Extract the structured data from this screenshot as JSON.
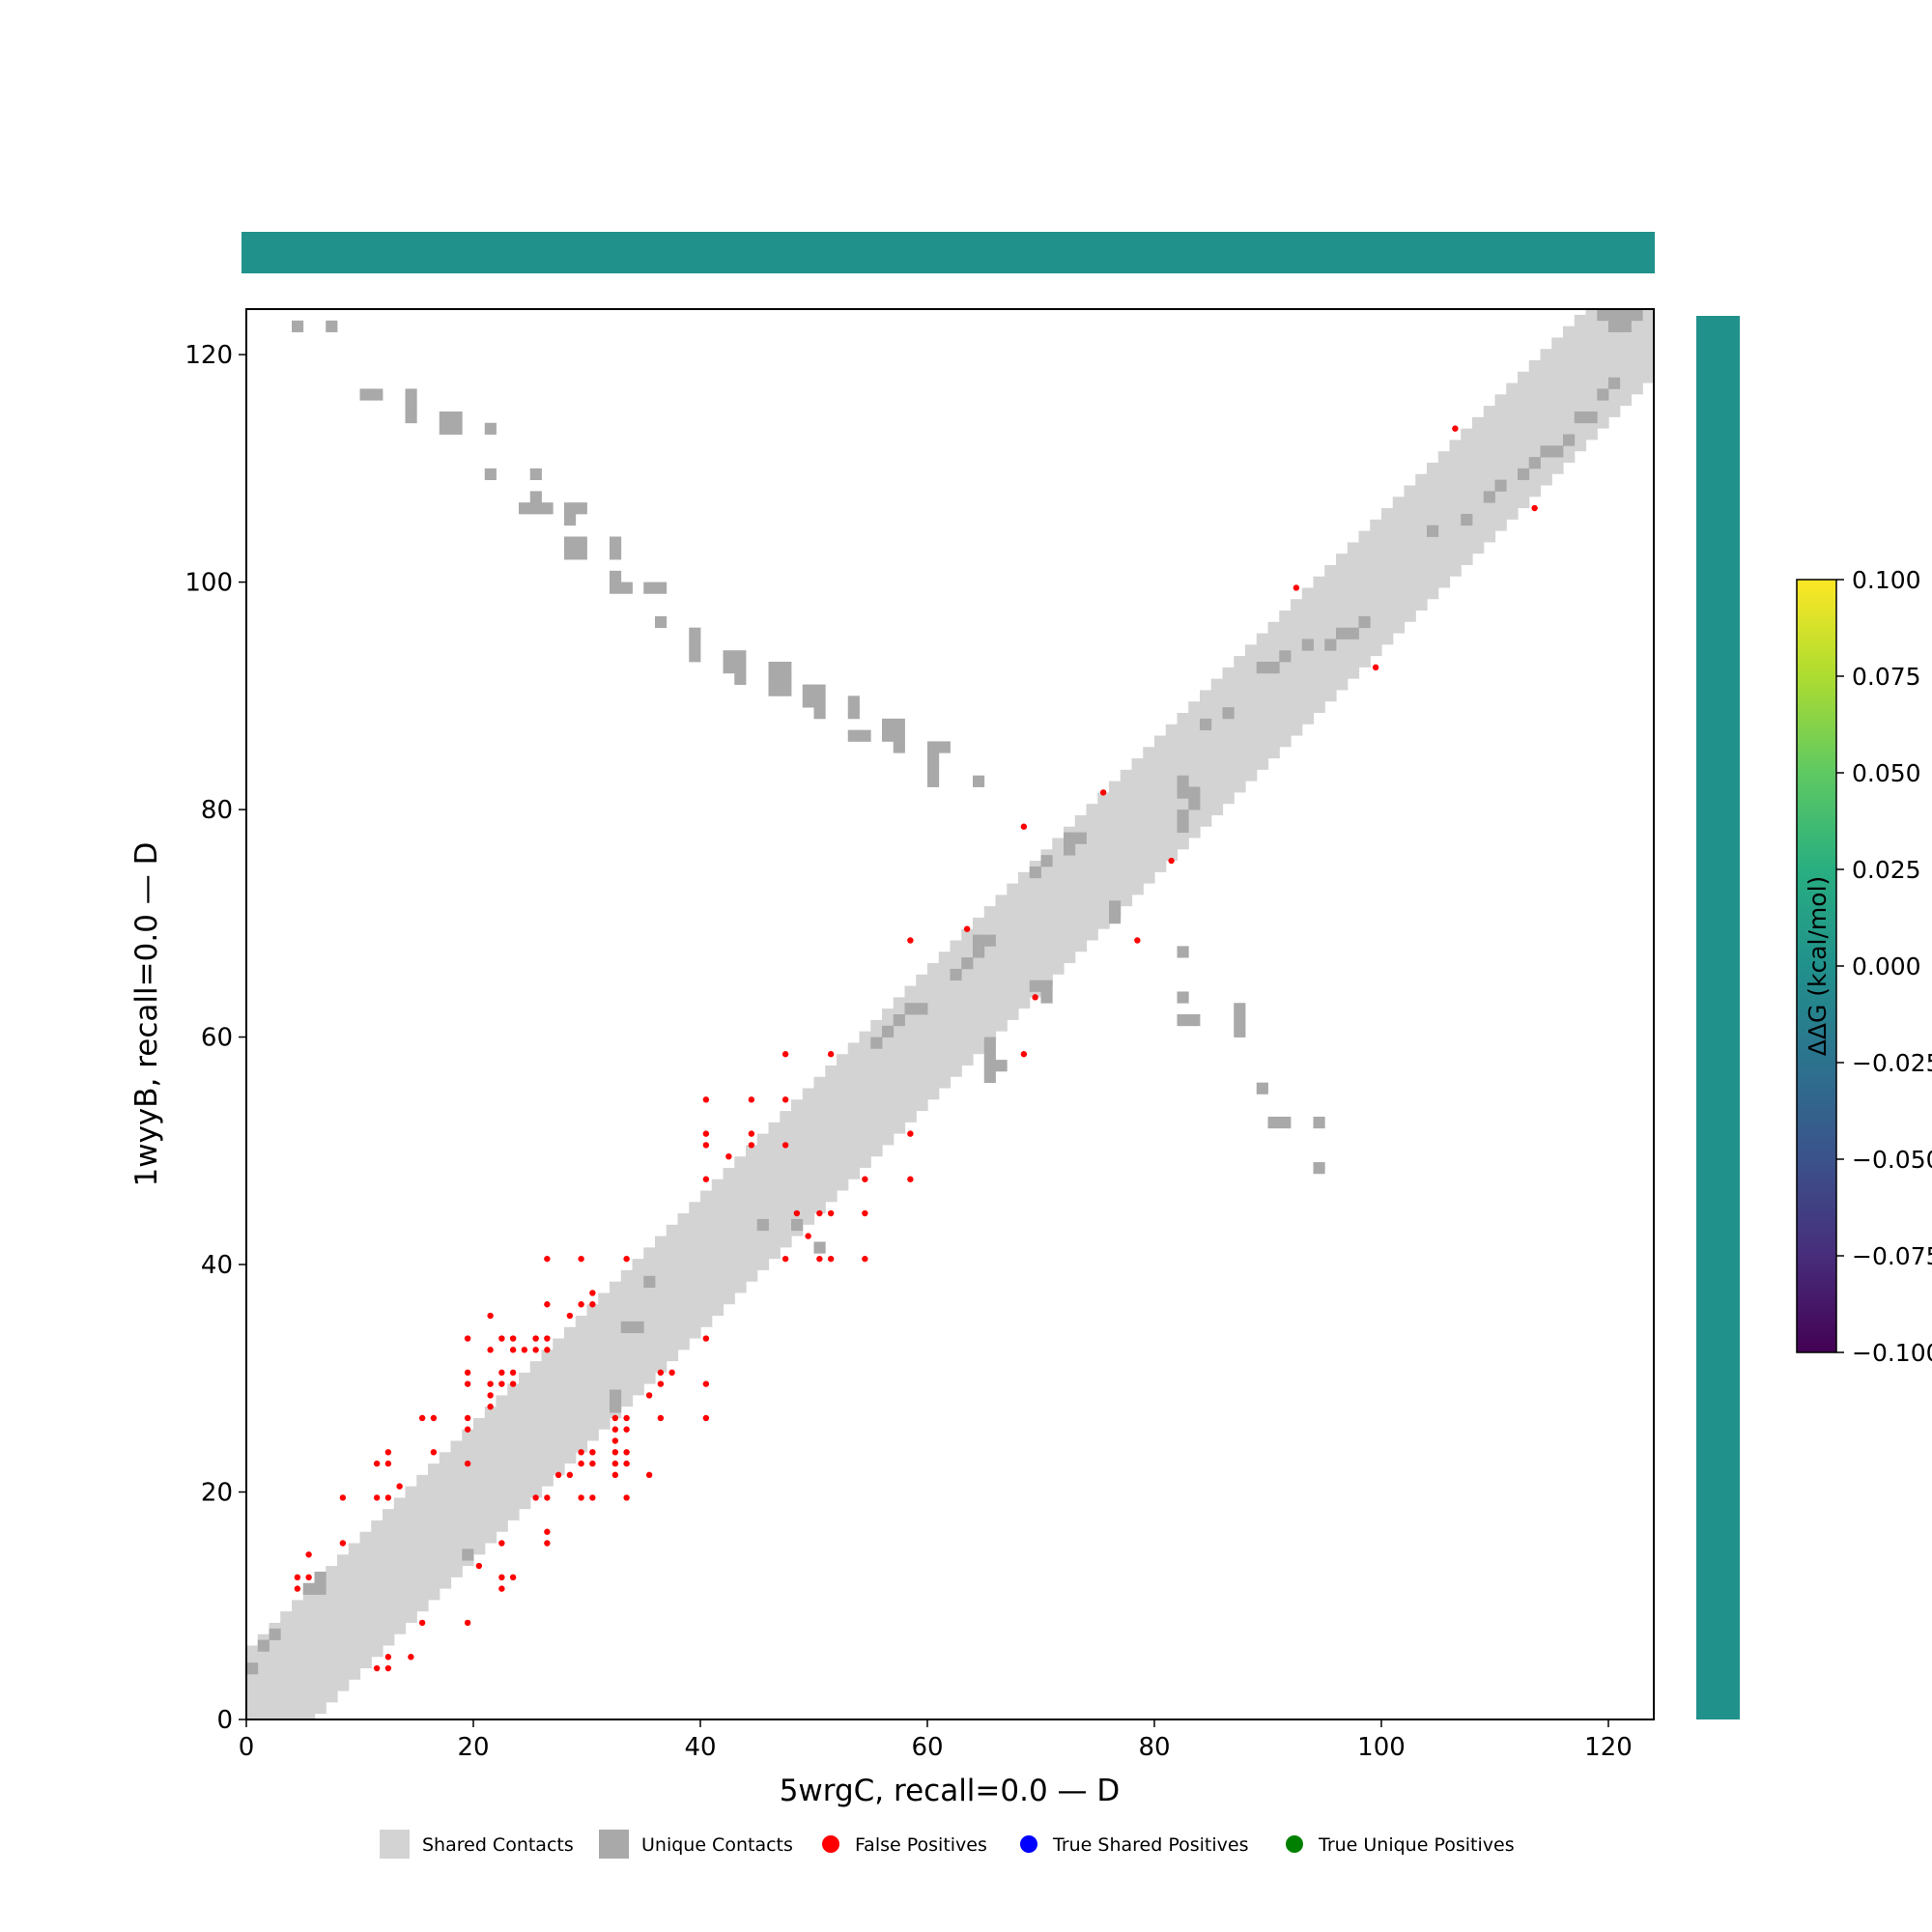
{
  "chart_data": {
    "type": "heatmap",
    "title": "",
    "xlabel": "5wrgC, recall=0.0 — D",
    "ylabel": "1wyyB, recall=0.0 — D",
    "xlim": [
      0,
      124
    ],
    "ylim": [
      0,
      124
    ],
    "xticks": [
      0,
      20,
      40,
      60,
      80,
      100,
      120
    ],
    "yticks": [
      0,
      20,
      40,
      60,
      80,
      100,
      120
    ],
    "grid": false,
    "colors": {
      "shared": "#d3d3d3",
      "unique": "#a9a9a9",
      "false_positive": "#ff0000",
      "true_shared_positive": "#0000ff",
      "true_unique_positive": "#008000",
      "track": "#21918c"
    },
    "shared_band": {
      "description_free": true,
      "x_start": 0,
      "x_end": 124,
      "half_width": 5.5
    },
    "unique_contacts": [
      [
        4,
        122
      ],
      [
        7,
        122
      ],
      [
        10,
        116
      ],
      [
        11,
        116
      ],
      [
        14,
        116
      ],
      [
        14,
        115
      ],
      [
        14,
        114
      ],
      [
        17,
        114
      ],
      [
        18,
        114
      ],
      [
        17,
        113
      ],
      [
        18,
        113
      ],
      [
        21,
        113
      ],
      [
        21,
        109
      ],
      [
        25,
        109
      ],
      [
        25,
        107
      ],
      [
        24,
        106
      ],
      [
        25,
        106
      ],
      [
        26,
        106
      ],
      [
        28,
        106
      ],
      [
        29,
        106
      ],
      [
        28,
        105
      ],
      [
        28,
        103
      ],
      [
        29,
        103
      ],
      [
        28,
        102
      ],
      [
        29,
        102
      ],
      [
        32,
        103
      ],
      [
        32,
        102
      ],
      [
        32,
        100
      ],
      [
        32,
        99
      ],
      [
        33,
        99
      ],
      [
        35,
        99
      ],
      [
        36,
        99
      ],
      [
        36,
        96
      ],
      [
        39,
        95
      ],
      [
        39,
        94
      ],
      [
        39,
        93
      ],
      [
        42,
        93
      ],
      [
        43,
        93
      ],
      [
        42,
        92
      ],
      [
        43,
        92
      ],
      [
        43,
        91
      ],
      [
        46,
        92
      ],
      [
        47,
        92
      ],
      [
        46,
        91
      ],
      [
        47,
        91
      ],
      [
        46,
        90
      ],
      [
        47,
        90
      ],
      [
        49,
        90
      ],
      [
        50,
        90
      ],
      [
        49,
        89
      ],
      [
        50,
        89
      ],
      [
        50,
        88
      ],
      [
        53,
        89
      ],
      [
        53,
        88
      ],
      [
        53,
        86
      ],
      [
        54,
        86
      ],
      [
        56,
        87
      ],
      [
        57,
        87
      ],
      [
        56,
        86
      ],
      [
        57,
        86
      ],
      [
        57,
        85
      ],
      [
        60,
        85
      ],
      [
        61,
        85
      ],
      [
        60,
        84
      ],
      [
        60,
        83
      ],
      [
        60,
        82
      ],
      [
        64,
        82
      ],
      [
        76,
        71
      ],
      [
        76,
        70
      ],
      [
        82,
        67
      ],
      [
        82,
        63
      ],
      [
        82,
        61
      ],
      [
        83,
        61
      ],
      [
        87,
        62
      ],
      [
        87,
        61
      ],
      [
        87,
        60
      ],
      [
        89,
        55
      ],
      [
        90,
        52
      ],
      [
        91,
        52
      ],
      [
        94,
        52
      ],
      [
        94,
        48
      ],
      [
        69,
        64
      ],
      [
        70,
        64
      ],
      [
        70,
        63
      ],
      [
        65,
        59
      ],
      [
        65,
        58
      ],
      [
        65,
        57
      ],
      [
        66,
        57
      ],
      [
        65,
        56
      ],
      [
        0,
        4
      ],
      [
        1,
        6
      ],
      [
        2,
        7
      ],
      [
        5,
        11
      ],
      [
        6,
        11
      ],
      [
        6,
        12
      ],
      [
        19,
        14
      ],
      [
        32,
        27
      ],
      [
        32,
        28
      ],
      [
        33,
        34
      ],
      [
        34,
        34
      ],
      [
        35,
        38
      ],
      [
        45,
        43
      ],
      [
        48,
        43
      ],
      [
        50,
        41
      ],
      [
        55,
        59
      ],
      [
        56,
        60
      ],
      [
        57,
        61
      ],
      [
        58,
        62
      ],
      [
        59,
        62
      ],
      [
        62,
        65
      ],
      [
        63,
        66
      ],
      [
        64,
        67
      ],
      [
        64,
        68
      ],
      [
        65,
        68
      ],
      [
        69,
        74
      ],
      [
        70,
        75
      ],
      [
        72,
        76
      ],
      [
        72,
        77
      ],
      [
        73,
        77
      ],
      [
        82,
        82
      ],
      [
        82,
        81
      ],
      [
        83,
        81
      ],
      [
        83,
        80
      ],
      [
        82,
        79
      ],
      [
        82,
        78
      ],
      [
        84,
        87
      ],
      [
        86,
        88
      ],
      [
        89,
        92
      ],
      [
        90,
        92
      ],
      [
        91,
        93
      ],
      [
        93,
        94
      ],
      [
        95,
        94
      ],
      [
        96,
        95
      ],
      [
        97,
        95
      ],
      [
        98,
        96
      ],
      [
        104,
        104
      ],
      [
        107,
        105
      ],
      [
        109,
        107
      ],
      [
        110,
        108
      ],
      [
        112,
        109
      ],
      [
        113,
        110
      ],
      [
        114,
        111
      ],
      [
        115,
        111
      ],
      [
        116,
        112
      ],
      [
        117,
        114
      ],
      [
        118,
        114
      ],
      [
        119,
        116
      ],
      [
        120,
        117
      ],
      [
        119,
        123
      ],
      [
        120,
        123
      ],
      [
        121,
        123
      ],
      [
        120,
        122
      ],
      [
        121,
        122
      ],
      [
        122,
        123
      ]
    ],
    "false_positives": [
      [
        4,
        12
      ],
      [
        5,
        12
      ],
      [
        4,
        11
      ],
      [
        5,
        14
      ],
      [
        8,
        19
      ],
      [
        8,
        15
      ],
      [
        11,
        22
      ],
      [
        12,
        22
      ],
      [
        12,
        23
      ],
      [
        11,
        19
      ],
      [
        12,
        19
      ],
      [
        13,
        20
      ],
      [
        15,
        26
      ],
      [
        16,
        26
      ],
      [
        16,
        23
      ],
      [
        15,
        8
      ],
      [
        11,
        4
      ],
      [
        12,
        4
      ],
      [
        12,
        5
      ],
      [
        14,
        5
      ],
      [
        19,
        33
      ],
      [
        19,
        30
      ],
      [
        19,
        29
      ],
      [
        19,
        26
      ],
      [
        19,
        25
      ],
      [
        19,
        22
      ],
      [
        20,
        13
      ],
      [
        19,
        8
      ],
      [
        21,
        35
      ],
      [
        21,
        32
      ],
      [
        21,
        29
      ],
      [
        21,
        28
      ],
      [
        21,
        27
      ],
      [
        22,
        33
      ],
      [
        22,
        30
      ],
      [
        22,
        29
      ],
      [
        23,
        33
      ],
      [
        23,
        32
      ],
      [
        23,
        30
      ],
      [
        23,
        29
      ],
      [
        24,
        32
      ],
      [
        25,
        33
      ],
      [
        25,
        32
      ],
      [
        26,
        33
      ],
      [
        26,
        32
      ],
      [
        26,
        40
      ],
      [
        26,
        36
      ],
      [
        26,
        19
      ],
      [
        25,
        19
      ],
      [
        26,
        16
      ],
      [
        26,
        15
      ],
      [
        22,
        15
      ],
      [
        22,
        12
      ],
      [
        23,
        12
      ],
      [
        22,
        11
      ],
      [
        27,
        21
      ],
      [
        28,
        21
      ],
      [
        28,
        35
      ],
      [
        29,
        40
      ],
      [
        29,
        36
      ],
      [
        30,
        37
      ],
      [
        30,
        36
      ],
      [
        29,
        23
      ],
      [
        30,
        23
      ],
      [
        29,
        22
      ],
      [
        30,
        22
      ],
      [
        29,
        19
      ],
      [
        30,
        19
      ],
      [
        32,
        26
      ],
      [
        33,
        26
      ],
      [
        32,
        25
      ],
      [
        33,
        25
      ],
      [
        32,
        24
      ],
      [
        32,
        23
      ],
      [
        33,
        23
      ],
      [
        32,
        22
      ],
      [
        33,
        22
      ],
      [
        32,
        21
      ],
      [
        33,
        19
      ],
      [
        33,
        40
      ],
      [
        35,
        21
      ],
      [
        35,
        28
      ],
      [
        36,
        29
      ],
      [
        36,
        30
      ],
      [
        37,
        30
      ],
      [
        36,
        26
      ],
      [
        40,
        54
      ],
      [
        40,
        51
      ],
      [
        40,
        50
      ],
      [
        40,
        47
      ],
      [
        42,
        49
      ],
      [
        40,
        33
      ],
      [
        40,
        29
      ],
      [
        40,
        26
      ],
      [
        44,
        54
      ],
      [
        44,
        51
      ],
      [
        44,
        50
      ],
      [
        47,
        58
      ],
      [
        47,
        54
      ],
      [
        47,
        50
      ],
      [
        47,
        40
      ],
      [
        48,
        44
      ],
      [
        49,
        42
      ],
      [
        50,
        44
      ],
      [
        51,
        44
      ],
      [
        50,
        40
      ],
      [
        51,
        40
      ],
      [
        51,
        58
      ],
      [
        54,
        47
      ],
      [
        54,
        44
      ],
      [
        54,
        40
      ],
      [
        58,
        51
      ],
      [
        58,
        47
      ],
      [
        58,
        68
      ],
      [
        63,
        69
      ],
      [
        68,
        78
      ],
      [
        69,
        63
      ],
      [
        68,
        58
      ],
      [
        75,
        81
      ],
      [
        78,
        68
      ],
      [
        81,
        75
      ],
      [
        92,
        99
      ],
      [
        99,
        92
      ],
      [
        106,
        113
      ],
      [
        113,
        106
      ]
    ],
    "true_shared_positives": [],
    "true_unique_positives": [],
    "colorbar": {
      "label": "ΔΔG (kcal/mol)",
      "ticks": [
        "0.100",
        "0.075",
        "0.050",
        "0.025",
        "0.000",
        "−0.025",
        "−0.050",
        "−0.075",
        "−0.100"
      ],
      "min": -0.1,
      "max": 0.1,
      "colormap": "viridis"
    },
    "legend": {
      "placement": "bottom",
      "entries": [
        {
          "label": "Shared Contacts",
          "marker": "square",
          "color": "#d3d3d3"
        },
        {
          "label": "Unique Contacts",
          "marker": "square",
          "color": "#a9a9a9"
        },
        {
          "label": "False Positives",
          "marker": "circle",
          "color": "#ff0000"
        },
        {
          "label": "True Shared Positives",
          "marker": "circle",
          "color": "#0000ff"
        },
        {
          "label": "True Unique Positives",
          "marker": "circle",
          "color": "#008000"
        }
      ]
    }
  }
}
